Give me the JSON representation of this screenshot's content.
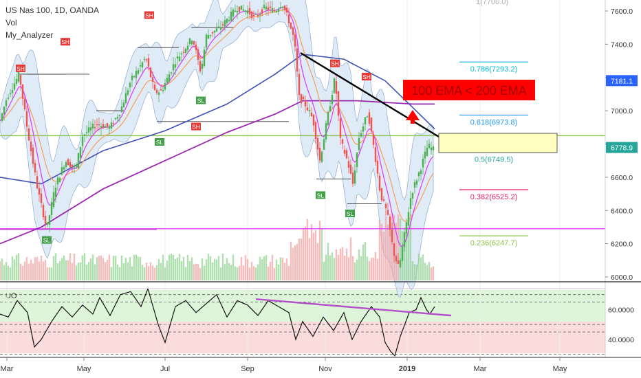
{
  "header": {
    "symbol_line": "US Nas 100, 1D, OANDA",
    "indicators": [
      "Vol",
      "My_Analyzer"
    ]
  },
  "chart_data": {
    "type": "candlestick",
    "x_ticks": [
      "Mar",
      "May",
      "Jul",
      "Sep",
      "Nov",
      "2019",
      "Mar",
      "May"
    ],
    "y_ticks": [
      "7600.0",
      "7400.0",
      "7200.0",
      "7000.0",
      "6800.0",
      "6600.0",
      "6400.0",
      "6200.0",
      "6000.0"
    ],
    "y_range": [
      5990,
      7660
    ],
    "price_badges": [
      {
        "value": 7181.1,
        "label": "7181.1",
        "color": "#2962ff"
      },
      {
        "value": 6778.9,
        "label": "6778.9",
        "color": "#26a69a"
      }
    ],
    "fib_levels": [
      {
        "label": "0.786(7293.2)",
        "value": 7293.2,
        "color": "#00bcd4"
      },
      {
        "label": "0.618(6973.8)",
        "value": 6973.8,
        "color": "#2196f3"
      },
      {
        "label": "0.5(6749.5)",
        "value": 6749.5,
        "color": "#26a69a"
      },
      {
        "label": "0.382(6525.2)",
        "value": 6525.2,
        "color": "#e91e63"
      },
      {
        "label": "0.236(6247.7)",
        "value": 6247.7,
        "color": "#8bc34a"
      }
    ],
    "fib_top_label": "1(7700.0)",
    "annotation": {
      "text": "100 EMA < 200 EMA",
      "bg": "#ff0000",
      "fg": "#b00000"
    },
    "horizontal_levels": [
      {
        "value": 6850,
        "color": "#8bc34a",
        "name": "support-resistance"
      },
      {
        "value": 6290,
        "color": "#e040fb",
        "name": "long-term-support"
      }
    ],
    "swing_labels": [
      {
        "text": "SH",
        "type": "high",
        "value": 7220
      },
      {
        "text": "SH",
        "type": "high",
        "value": 7380
      },
      {
        "text": "SH",
        "type": "high",
        "value": 7540
      },
      {
        "text": "SH",
        "type": "high",
        "value": 6870
      },
      {
        "text": "SH",
        "type": "high",
        "value": 7250
      },
      {
        "text": "SH",
        "type": "high",
        "value": 7170
      },
      {
        "text": "SL",
        "type": "low",
        "value": 6270
      },
      {
        "text": "SL",
        "type": "low",
        "value": 6860
      },
      {
        "text": "SL",
        "type": "low",
        "value": 7110
      },
      {
        "text": "SL",
        "type": "low",
        "value": 6540
      },
      {
        "text": "SL",
        "type": "low",
        "value": 6430
      }
    ],
    "oscillator": {
      "name": "UO",
      "y_ticks": [
        "60.0000",
        "40.0000"
      ],
      "y_range": [
        28,
        74
      ],
      "overbought_band": [
        50,
        70
      ],
      "oversold_band": [
        30,
        50
      ],
      "dashed_levels": [
        70,
        65,
        50,
        45,
        30
      ]
    },
    "colors": {
      "up": "#26a69a",
      "up_bright": "#4caf50",
      "down": "#ef5350",
      "ema_fast": "#e040fb",
      "ema_mid": "#f4a460",
      "ema_100": "#3f51b5",
      "ema_200": "#9c27b0",
      "bollinger_fill": "#d6e4f5",
      "trendline": "#000000",
      "arrow": "#ff0000"
    }
  }
}
